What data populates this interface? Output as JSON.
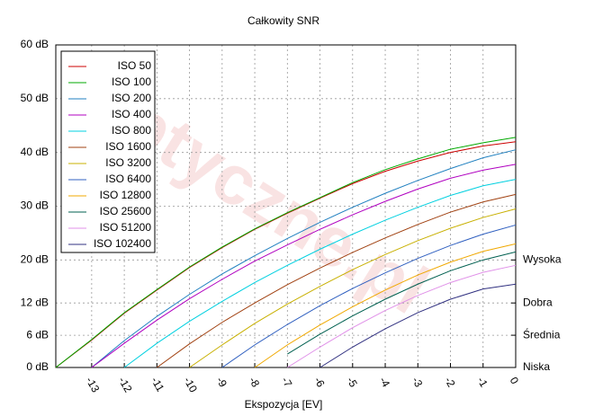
{
  "chart_data": {
    "type": "line",
    "title": "Całkowity SNR",
    "xlabel": "Ekspozycja [EV]",
    "watermark": "Optyczne.pl",
    "x": [
      -14.1,
      -13,
      -12,
      -11,
      -10,
      -9,
      -8,
      -7,
      -6,
      -5,
      -4,
      -3,
      -2,
      -1,
      0
    ],
    "xlim": [
      -14.1,
      0
    ],
    "xticks": [
      -13,
      -12,
      -11,
      -10,
      -9,
      -8,
      -7,
      -6,
      -5,
      -4,
      -3,
      -2,
      -1,
      0
    ],
    "ylim": [
      0,
      60
    ],
    "yticks": [
      {
        "value": 0,
        "label": "0 dB"
      },
      {
        "value": 6,
        "label": "6 dB"
      },
      {
        "value": 12,
        "label": "12 dB"
      },
      {
        "value": 20,
        "label": "20 dB"
      },
      {
        "value": 30,
        "label": "30 dB"
      },
      {
        "value": 40,
        "label": "40 dB"
      },
      {
        "value": 50,
        "label": "50 dB"
      },
      {
        "value": 60,
        "label": "60 dB"
      }
    ],
    "y2ticks": [
      {
        "value": 0,
        "label": "Niska"
      },
      {
        "value": 6,
        "label": "Średnia"
      },
      {
        "value": 12,
        "label": "Dobra"
      },
      {
        "value": 20,
        "label": "Wysoka"
      }
    ],
    "grid": true,
    "legend": "upper left",
    "series": [
      {
        "name": "ISO 50",
        "color": "#cc0000",
        "values": [
          0,
          5.1,
          10.1,
          14.4,
          18.6,
          22.3,
          25.7,
          28.7,
          31.5,
          34.2,
          36.5,
          38.4,
          40.0,
          41.2,
          42.0
        ]
      },
      {
        "name": "ISO 100",
        "color": "#00aa00",
        "values": [
          0,
          5.2,
          10.2,
          14.5,
          18.7,
          22.4,
          25.8,
          28.8,
          31.6,
          34.4,
          36.8,
          38.8,
          40.6,
          41.8,
          42.8
        ]
      },
      {
        "name": "ISO 200",
        "color": "#2080c0",
        "values": [
          null,
          0,
          5,
          9.5,
          13.6,
          17.4,
          20.8,
          24,
          27,
          29.8,
          32.4,
          34.8,
          37,
          39,
          40.5
        ]
      },
      {
        "name": "ISO 400",
        "color": "#b000c0",
        "values": [
          null,
          0,
          4.5,
          8.8,
          12.8,
          16.4,
          19.8,
          22.8,
          25.7,
          28.4,
          30.9,
          33.2,
          35.2,
          36.7,
          37.8
        ]
      },
      {
        "name": "ISO 800",
        "color": "#00d0e0",
        "values": [
          null,
          null,
          0,
          4.5,
          8.6,
          12.3,
          15.8,
          19,
          22,
          24.8,
          27.4,
          29.8,
          32,
          33.8,
          35
        ]
      },
      {
        "name": "ISO 1600",
        "color": "#a04010",
        "values": [
          null,
          null,
          null,
          0,
          4.4,
          8.4,
          12,
          15.4,
          18.5,
          21.4,
          24.1,
          26.6,
          28.9,
          30.8,
          32.2
        ]
      },
      {
        "name": "ISO 3200",
        "color": "#c8b000",
        "values": [
          null,
          null,
          null,
          null,
          0,
          4.2,
          8.2,
          11.8,
          15.1,
          18.2,
          21.0,
          23.6,
          25.9,
          27.9,
          29.5
        ]
      },
      {
        "name": "ISO 6400",
        "color": "#3060c0",
        "values": [
          null,
          null,
          null,
          null,
          null,
          0,
          4.2,
          8,
          11.5,
          14.7,
          17.6,
          20.3,
          22.7,
          24.8,
          26.5
        ]
      },
      {
        "name": "ISO 12800",
        "color": "#f0a800",
        "values": [
          null,
          null,
          null,
          null,
          null,
          null,
          0,
          4.2,
          7.9,
          11.3,
          14.4,
          17.2,
          19.6,
          21.6,
          23.0
        ]
      },
      {
        "name": "ISO 25600",
        "color": "#006050",
        "values": [
          null,
          null,
          null,
          null,
          null,
          null,
          null,
          2.5,
          6.2,
          9.6,
          12.7,
          15.5,
          18,
          20,
          21.5
        ]
      },
      {
        "name": "ISO 51200",
        "color": "#e090e8",
        "values": [
          null,
          null,
          null,
          null,
          null,
          null,
          null,
          0,
          3.8,
          7.4,
          10.6,
          13.4,
          15.8,
          17.7,
          19.0
        ]
      },
      {
        "name": "ISO 102400",
        "color": "#303080",
        "values": [
          null,
          null,
          null,
          null,
          null,
          null,
          null,
          null,
          0,
          3.8,
          7.2,
          10.2,
          12.7,
          14.6,
          15.5
        ]
      }
    ]
  }
}
